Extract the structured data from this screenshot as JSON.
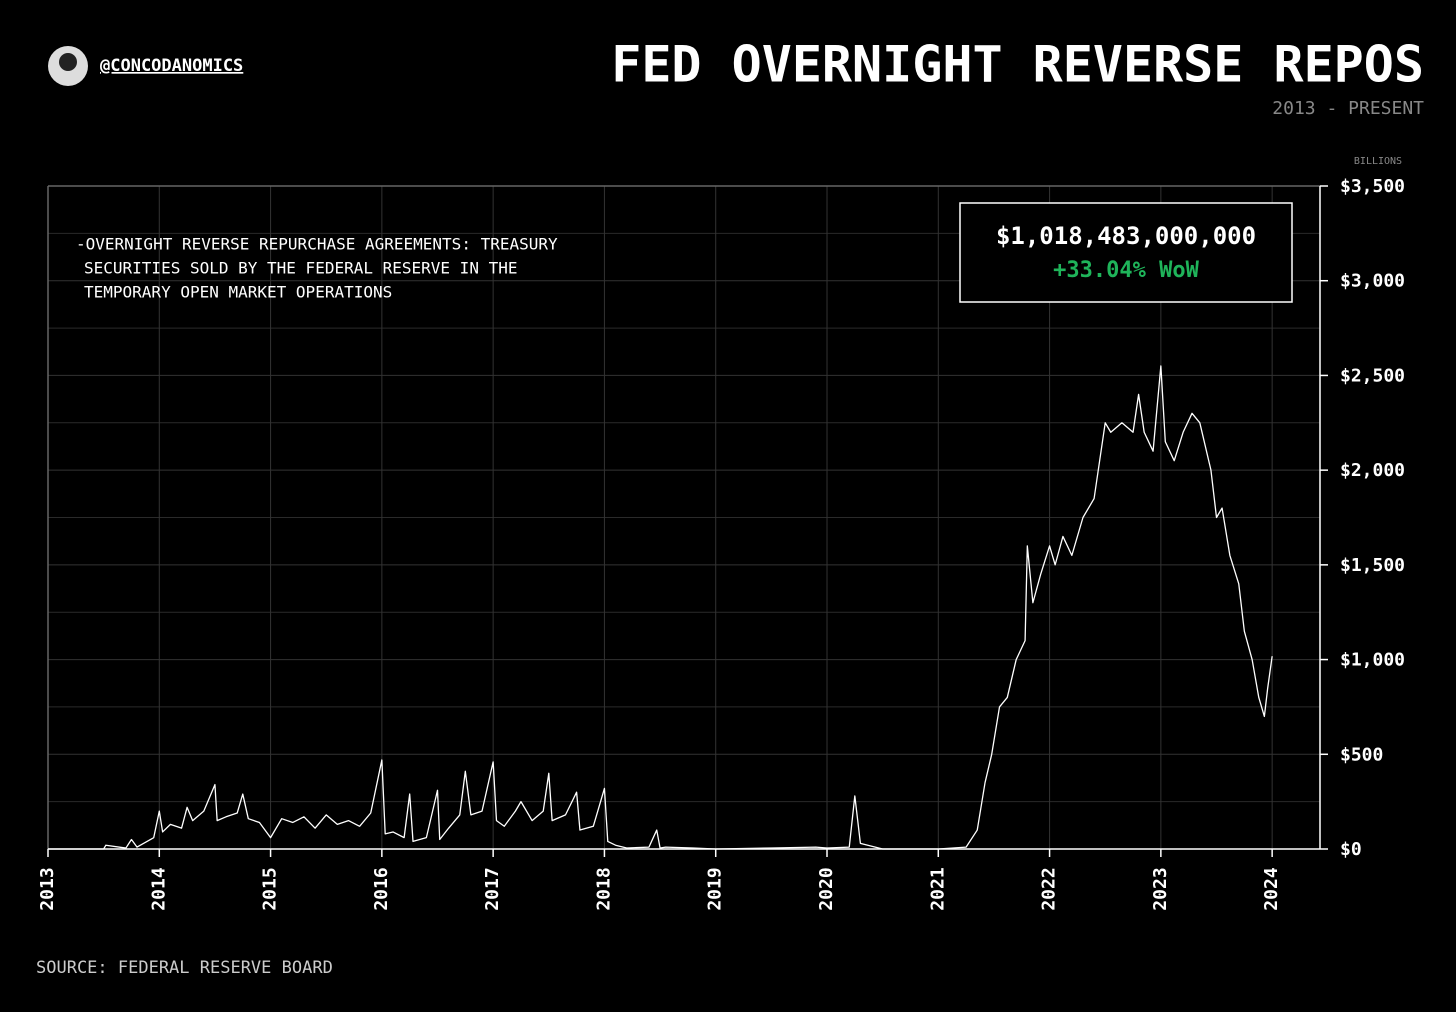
{
  "chart_data": {
    "type": "line",
    "title": "FED OVERNIGHT REVERSE REPOS",
    "subtitle": "2013 - PRESENT",
    "handle": "@CONCODANOMICS",
    "y_unit": "BILLIONS",
    "source": "SOURCE: FEDERAL RESERVE BOARD",
    "annotation_lines": [
      "-OVERNIGHT REVERSE REPURCHASE AGREEMENTS: TREASURY",
      "SECURITIES SOLD BY THE FEDERAL RESERVE IN THE",
      "TEMPORARY OPEN MARKET OPERATIONS"
    ],
    "callout": {
      "value_text": "$1,018,483,000,000",
      "change_text": "+33.04% WoW",
      "change_color": "#1fb45a"
    },
    "x": [
      2013,
      2013.5,
      2013.52,
      2013.7,
      2013.75,
      2013.8,
      2013.95,
      2014.0,
      2014.03,
      2014.1,
      2014.2,
      2014.25,
      2014.3,
      2014.4,
      2014.5,
      2014.52,
      2014.6,
      2014.7,
      2014.75,
      2014.8,
      2014.9,
      2015.0,
      2015.1,
      2015.2,
      2015.3,
      2015.4,
      2015.5,
      2015.6,
      2015.7,
      2015.8,
      2015.9,
      2016.0,
      2016.03,
      2016.1,
      2016.2,
      2016.25,
      2016.28,
      2016.4,
      2016.5,
      2016.52,
      2016.6,
      2016.7,
      2016.75,
      2016.8,
      2016.9,
      2017.0,
      2017.03,
      2017.1,
      2017.2,
      2017.25,
      2017.35,
      2017.45,
      2017.5,
      2017.53,
      2017.65,
      2017.75,
      2017.78,
      2017.9,
      2018.0,
      2018.03,
      2018.1,
      2018.2,
      2018.4,
      2018.47,
      2018.5,
      2018.55,
      2018.8,
      2019.0,
      2019.5,
      2019.9,
      2020.0,
      2020.2,
      2020.25,
      2020.3,
      2020.5,
      2021.0,
      2021.25,
      2021.35,
      2021.42,
      2021.48,
      2021.55,
      2021.62,
      2021.7,
      2021.78,
      2021.8,
      2021.85,
      2021.92,
      2022.0,
      2022.05,
      2022.12,
      2022.2,
      2022.3,
      2022.4,
      2022.5,
      2022.55,
      2022.65,
      2022.75,
      2022.8,
      2022.85,
      2022.93,
      2023.0,
      2023.04,
      2023.12,
      2023.2,
      2023.28,
      2023.35,
      2023.45,
      2023.5,
      2023.55,
      2023.62,
      2023.7,
      2023.75,
      2023.82,
      2023.88,
      2023.93,
      2023.96,
      2024.0
    ],
    "series": [
      {
        "name": "Overnight reverse repurchase agreements",
        "color": "#ffffff",
        "values": [
          0,
          0,
          20,
          5,
          50,
          10,
          60,
          200,
          90,
          130,
          110,
          220,
          150,
          200,
          340,
          150,
          170,
          190,
          290,
          160,
          140,
          60,
          160,
          140,
          170,
          110,
          180,
          130,
          150,
          120,
          190,
          470,
          80,
          90,
          60,
          290,
          40,
          60,
          310,
          50,
          110,
          180,
          410,
          180,
          200,
          460,
          150,
          120,
          200,
          250,
          150,
          200,
          400,
          150,
          180,
          300,
          100,
          120,
          320,
          40,
          20,
          5,
          10,
          100,
          5,
          10,
          5,
          0,
          5,
          10,
          5,
          10,
          280,
          30,
          0,
          0,
          10,
          100,
          350,
          500,
          750,
          800,
          1000,
          1100,
          1600,
          1300,
          1450,
          1600,
          1500,
          1650,
          1550,
          1750,
          1850,
          2250,
          2200,
          2250,
          2200,
          2400,
          2200,
          2100,
          2550,
          2150,
          2050,
          2200,
          2300,
          2250,
          2000,
          1750,
          1800,
          1550,
          1400,
          1150,
          1000,
          800,
          700,
          850,
          1018
        ]
      }
    ],
    "xlim": [
      2013,
      2024.43
    ],
    "xticks": [
      2013,
      2014,
      2015,
      2016,
      2017,
      2018,
      2019,
      2020,
      2021,
      2022,
      2023,
      2024
    ],
    "ylim": [
      0,
      3500
    ],
    "yticks": [
      {
        "value": 0,
        "label": "$0"
      },
      {
        "value": 500,
        "label": "$500"
      },
      {
        "value": 1000,
        "label": "$1,000"
      },
      {
        "value": 1500,
        "label": "$1,500"
      },
      {
        "value": 2000,
        "label": "$2,000"
      },
      {
        "value": 2500,
        "label": "$2,500"
      },
      {
        "value": 3000,
        "label": "$3,000"
      },
      {
        "value": 3500,
        "label": "$3,500"
      }
    ],
    "yminorticks": [
      250,
      750,
      1250,
      1750,
      2250,
      2750,
      3250
    ],
    "grid": true
  }
}
